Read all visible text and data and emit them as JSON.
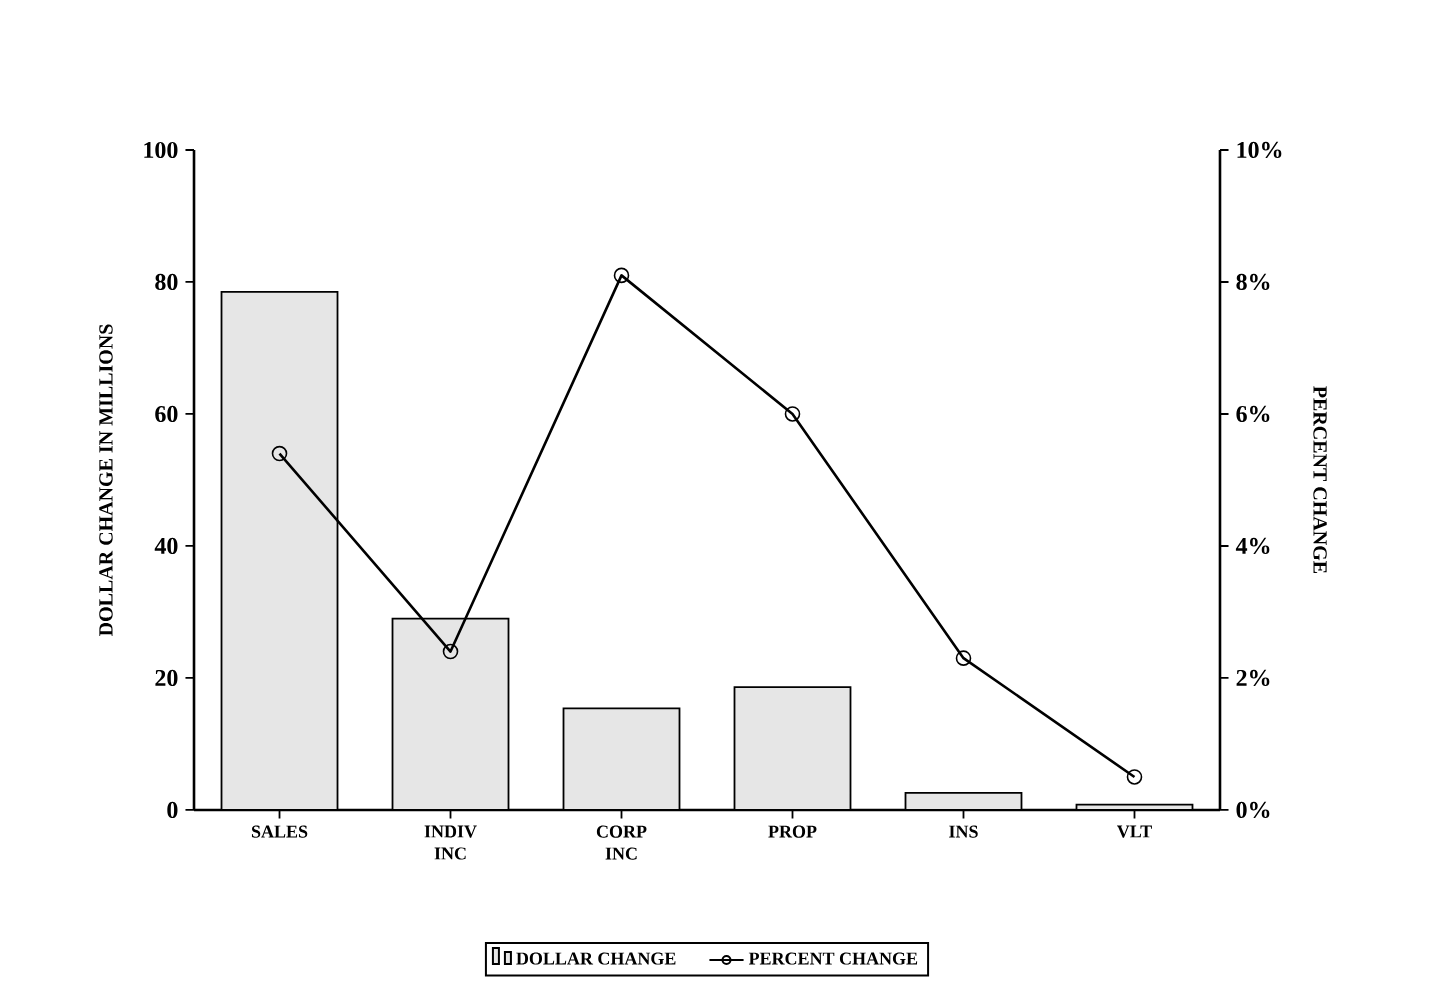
{
  "chart_data": {
    "type": "bar",
    "categories": [
      "SALES",
      "INDIV INC",
      "CORP INC",
      "PROP",
      "INS",
      "VLT"
    ],
    "series": [
      {
        "name": "DOLLAR CHANGE",
        "color": "#e6e6e6",
        "values": [
          78.5,
          29,
          15.4,
          18.6,
          2.6,
          0.8
        ]
      },
      {
        "name": "PERCENT CHANGE",
        "type": "line",
        "axis": "y2",
        "color": "#000000",
        "marker": "circle",
        "values": [
          5.4,
          2.4,
          8.1,
          6.0,
          2.3,
          0.5
        ]
      }
    ],
    "ylabel": "DOLLAR CHANGE IN MILLIONS",
    "y2label": "PERCENT CHANGE",
    "ylim": [
      0,
      100
    ],
    "yticks": [
      0,
      20,
      40,
      60,
      80,
      100
    ],
    "y2lim": [
      0,
      10
    ],
    "y2ticks": [
      {
        "value": 0,
        "label": "0%"
      },
      {
        "value": 2,
        "label": "2%"
      },
      {
        "value": 4,
        "label": "4%"
      },
      {
        "value": 6,
        "label": "6%"
      },
      {
        "value": 8,
        "label": "8%"
      },
      {
        "value": 10,
        "label": "10%"
      }
    ],
    "legend": "bottom"
  }
}
